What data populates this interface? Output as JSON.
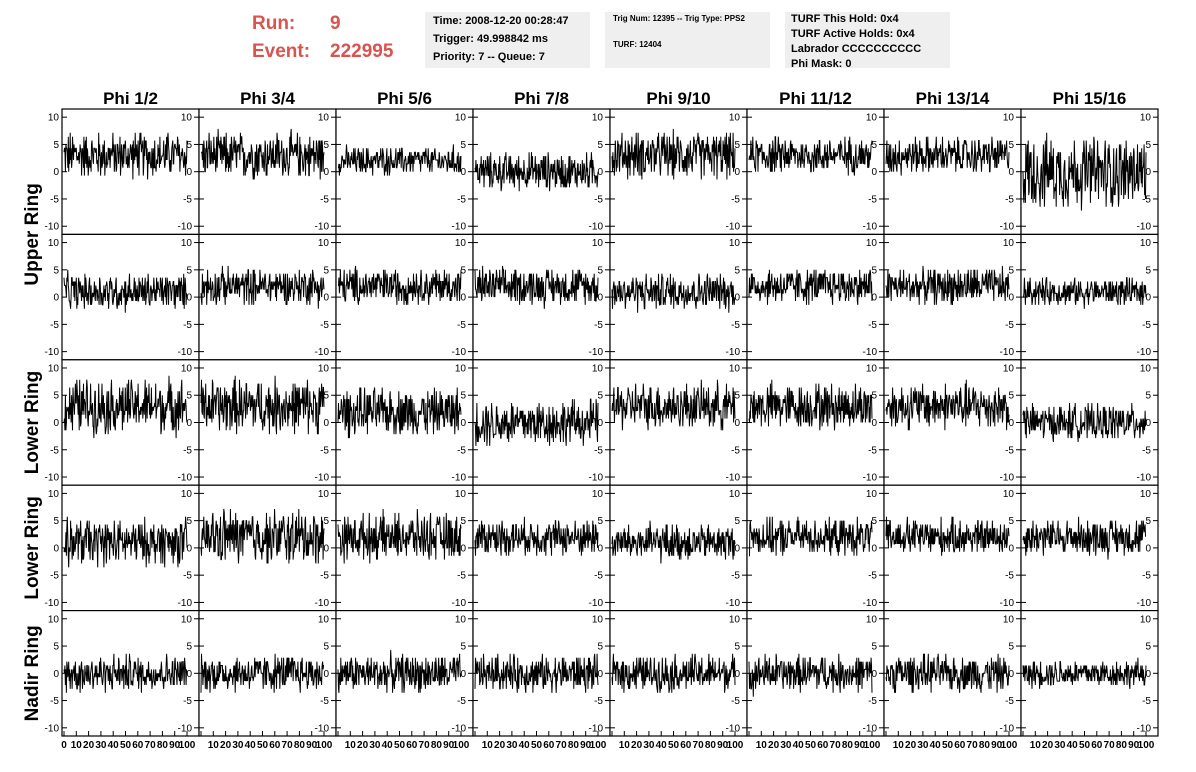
{
  "header": {
    "run_label": "Run:",
    "run_value": "9",
    "event_label": "Event:",
    "event_value": "222995",
    "run_color": "#d9534f",
    "time_pane": [
      "Time: 2008-12-20 00:28:47",
      "Trigger: 49.998842 ms",
      "Priority: 7 -- Queue: 7"
    ],
    "trig_pane": [
      "Trig Num: 12395 -- Trig Type: PPS2",
      "TURF: 12404"
    ],
    "turf_pane": [
      "TURF This Hold: 0x4",
      "TURF Active Holds: 0x4",
      "Labrador CCCCCCCCCC",
      "Phi Mask: 0"
    ]
  },
  "chart_data": {
    "type": "line",
    "columns": [
      "Phi 1/2",
      "Phi 3/4",
      "Phi 5/6",
      "Phi 7/8",
      "Phi 9/10",
      "Phi 11/12",
      "Phi 13/14",
      "Phi 15/16"
    ],
    "row_labels": [
      "Upper Ring",
      "Lower Ring",
      "Lower Ring",
      "Nadir Ring"
    ],
    "trace_rows": 5,
    "xlim": [
      0,
      100
    ],
    "ylim": [
      -11.5,
      11.5
    ],
    "y_ticks": [
      10,
      5,
      0,
      -5,
      -10
    ],
    "x_ticks": [
      0,
      10,
      20,
      30,
      40,
      50,
      60,
      70,
      80,
      90,
      100
    ],
    "samples_per_trace": 260,
    "baseline": [
      [
        3,
        3,
        2,
        0,
        3,
        3,
        3,
        0
      ],
      [
        1,
        2,
        2,
        2,
        1,
        2,
        2,
        1
      ],
      [
        3,
        3,
        2,
        0,
        3,
        3,
        3,
        0
      ],
      [
        1,
        2,
        2,
        2,
        1,
        2,
        2,
        2
      ],
      [
        0,
        0,
        0,
        0,
        0,
        0,
        0,
        0
      ]
    ],
    "amplitude": [
      [
        5,
        5,
        3,
        4,
        5,
        4,
        4,
        8
      ],
      [
        4,
        4,
        4,
        4,
        4,
        4,
        4,
        3
      ],
      [
        6,
        6,
        5,
        5,
        5,
        5,
        5,
        4
      ],
      [
        5,
        6,
        5,
        4,
        4,
        4,
        4,
        4
      ],
      [
        4,
        4,
        4,
        4,
        4,
        4,
        4,
        3
      ]
    ]
  }
}
